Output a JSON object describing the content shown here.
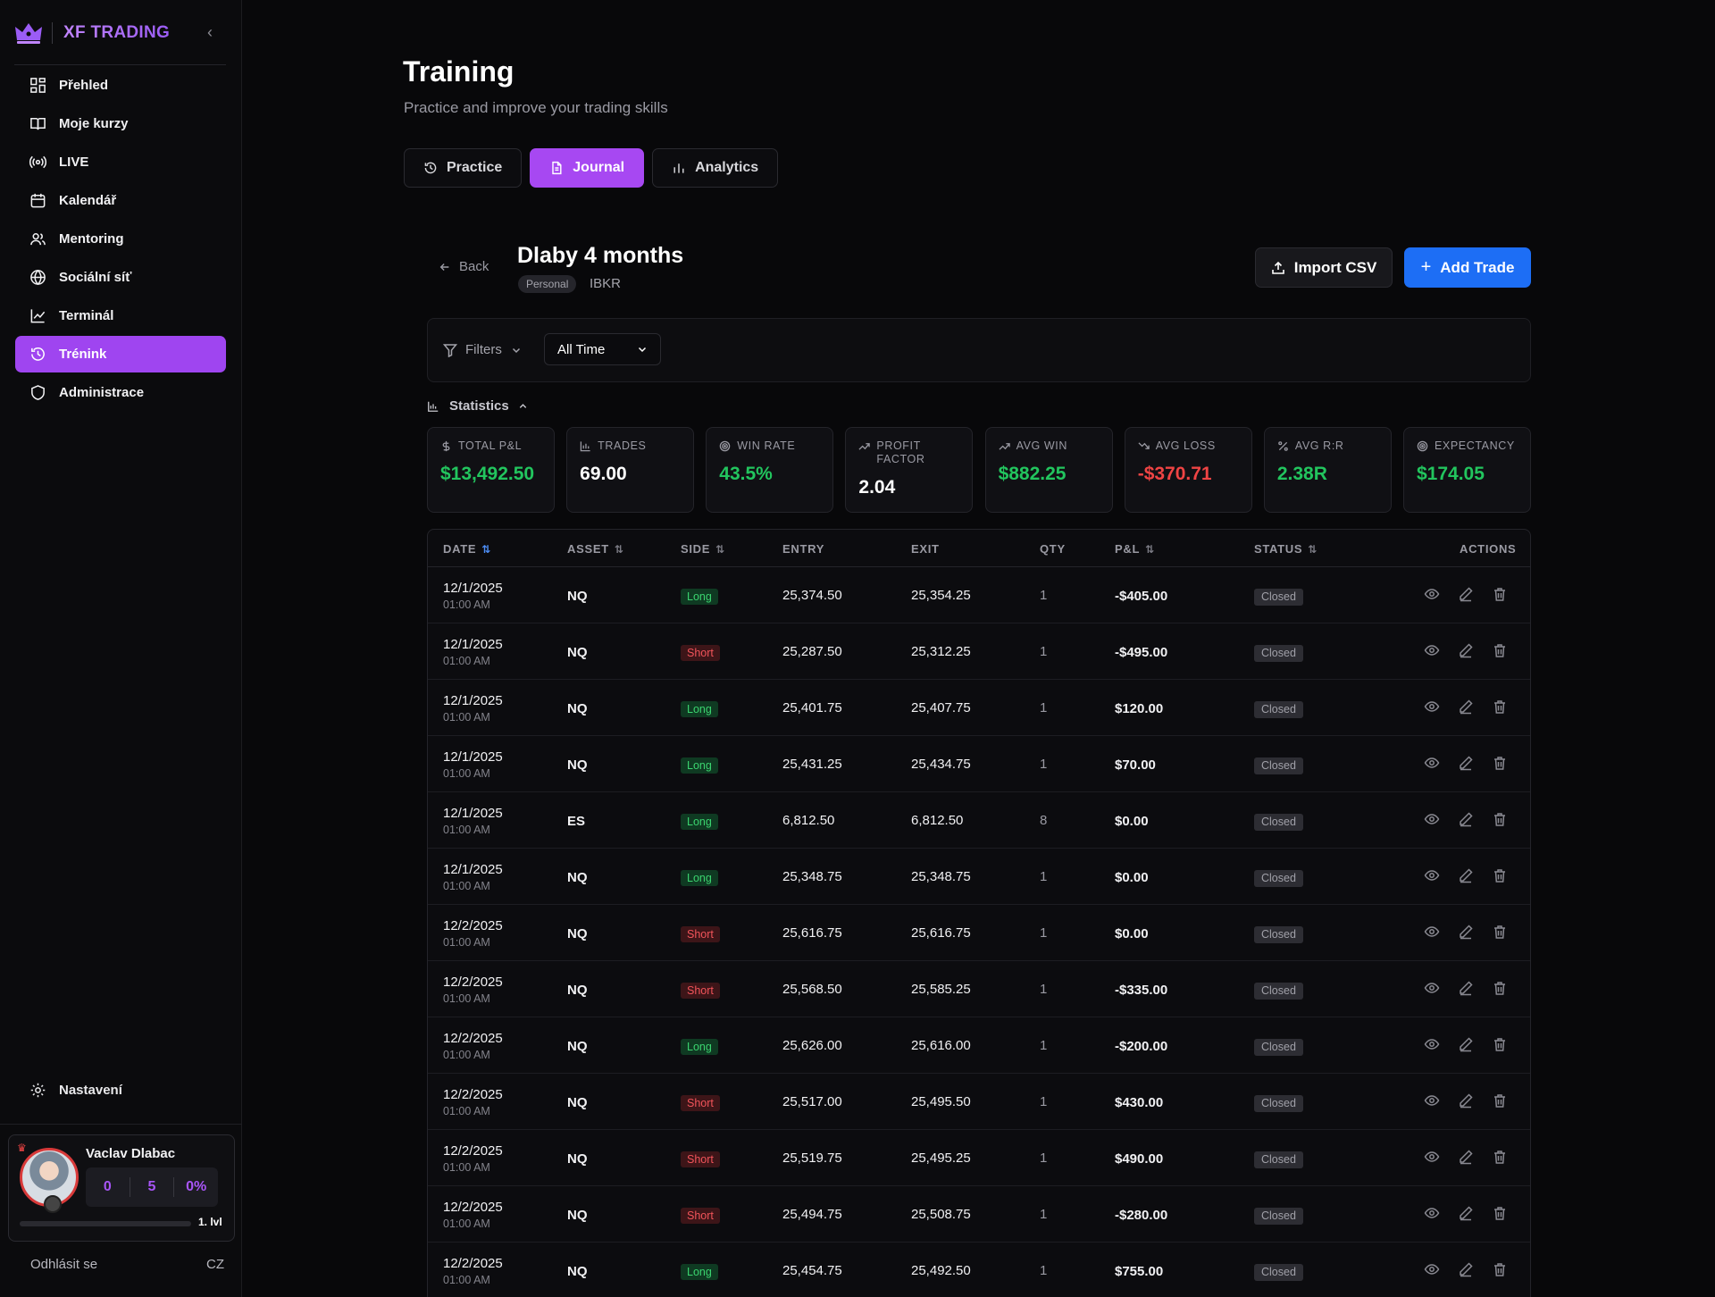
{
  "brand": {
    "name": "XF TRADING"
  },
  "sidebar": {
    "items": [
      {
        "label": "Přehled",
        "icon": "grid-icon"
      },
      {
        "label": "Moje kurzy",
        "icon": "book-icon"
      },
      {
        "label": "LIVE",
        "icon": "broadcast-icon"
      },
      {
        "label": "Kalendář",
        "icon": "calendar-icon"
      },
      {
        "label": "Mentoring",
        "icon": "users-icon"
      },
      {
        "label": "Sociální síť",
        "icon": "globe-icon"
      },
      {
        "label": "Terminál",
        "icon": "chart-line-icon"
      },
      {
        "label": "Trénink",
        "icon": "history-icon",
        "active": true
      },
      {
        "label": "Administrace",
        "icon": "shield-icon"
      }
    ],
    "settings": "Nastavení",
    "profile": {
      "name": "Vaclav Dlabac",
      "stat1": "0",
      "stat2": "5",
      "stat3": "0%",
      "level": "1. lvl",
      "progress": 0
    },
    "logout": "Odhlásit se",
    "lang": "CZ"
  },
  "page": {
    "title": "Training",
    "subtitle": "Practice and improve your trading skills"
  },
  "tabs": [
    {
      "label": "Practice",
      "icon": "history-icon"
    },
    {
      "label": "Journal",
      "icon": "document-icon",
      "active": true
    },
    {
      "label": "Analytics",
      "icon": "bar-chart-icon"
    }
  ],
  "journal": {
    "back": "Back",
    "title": "Dlaby 4 months",
    "chip": "Personal",
    "broker": "IBKR",
    "import": "Import CSV",
    "add": "Add Trade",
    "filters": "Filters",
    "period": "All Time",
    "stats_label": "Statistics"
  },
  "stats": [
    {
      "label": "TOTAL P&L",
      "value": "$13,492.50",
      "tone": "green",
      "icon": "dollar-icon"
    },
    {
      "label": "TRADES",
      "value": "69.00",
      "tone": "white",
      "icon": "bar-chart-icon"
    },
    {
      "label": "WIN RATE",
      "value": "43.5%",
      "tone": "green",
      "icon": "target-icon"
    },
    {
      "label": "PROFIT FACTOR",
      "value": "2.04",
      "tone": "white",
      "icon": "trend-up-icon"
    },
    {
      "label": "AVG WIN",
      "value": "$882.25",
      "tone": "green",
      "icon": "trend-up-icon"
    },
    {
      "label": "AVG LOSS",
      "value": "-$370.71",
      "tone": "red",
      "icon": "trend-down-icon"
    },
    {
      "label": "AVG R:R",
      "value": "2.38R",
      "tone": "green",
      "icon": "percent-icon"
    },
    {
      "label": "EXPECTANCY",
      "value": "$174.05",
      "tone": "green",
      "icon": "target-icon"
    }
  ],
  "table": {
    "headers": {
      "date": "DATE",
      "asset": "ASSET",
      "side": "SIDE",
      "entry": "ENTRY",
      "exit": "EXIT",
      "qty": "QTY",
      "pnl": "P&L",
      "status": "STATUS",
      "actions": "ACTIONS"
    },
    "rows": [
      {
        "date": "12/1/2025",
        "time": "01:00 AM",
        "asset": "NQ",
        "side": "Long",
        "entry": "25,374.50",
        "exit": "25,354.25",
        "qty": "1",
        "pnl": "-$405.00",
        "status": "Closed"
      },
      {
        "date": "12/1/2025",
        "time": "01:00 AM",
        "asset": "NQ",
        "side": "Short",
        "entry": "25,287.50",
        "exit": "25,312.25",
        "qty": "1",
        "pnl": "-$495.00",
        "status": "Closed"
      },
      {
        "date": "12/1/2025",
        "time": "01:00 AM",
        "asset": "NQ",
        "side": "Long",
        "entry": "25,401.75",
        "exit": "25,407.75",
        "qty": "1",
        "pnl": "$120.00",
        "status": "Closed"
      },
      {
        "date": "12/1/2025",
        "time": "01:00 AM",
        "asset": "NQ",
        "side": "Long",
        "entry": "25,431.25",
        "exit": "25,434.75",
        "qty": "1",
        "pnl": "$70.00",
        "status": "Closed"
      },
      {
        "date": "12/1/2025",
        "time": "01:00 AM",
        "asset": "ES",
        "side": "Long",
        "entry": "6,812.50",
        "exit": "6,812.50",
        "qty": "8",
        "pnl": "$0.00",
        "status": "Closed"
      },
      {
        "date": "12/1/2025",
        "time": "01:00 AM",
        "asset": "NQ",
        "side": "Long",
        "entry": "25,348.75",
        "exit": "25,348.75",
        "qty": "1",
        "pnl": "$0.00",
        "status": "Closed"
      },
      {
        "date": "12/2/2025",
        "time": "01:00 AM",
        "asset": "NQ",
        "side": "Short",
        "entry": "25,616.75",
        "exit": "25,616.75",
        "qty": "1",
        "pnl": "$0.00",
        "status": "Closed"
      },
      {
        "date": "12/2/2025",
        "time": "01:00 AM",
        "asset": "NQ",
        "side": "Short",
        "entry": "25,568.50",
        "exit": "25,585.25",
        "qty": "1",
        "pnl": "-$335.00",
        "status": "Closed"
      },
      {
        "date": "12/2/2025",
        "time": "01:00 AM",
        "asset": "NQ",
        "side": "Long",
        "entry": "25,626.00",
        "exit": "25,616.00",
        "qty": "1",
        "pnl": "-$200.00",
        "status": "Closed"
      },
      {
        "date": "12/2/2025",
        "time": "01:00 AM",
        "asset": "NQ",
        "side": "Short",
        "entry": "25,517.00",
        "exit": "25,495.50",
        "qty": "1",
        "pnl": "$430.00",
        "status": "Closed"
      },
      {
        "date": "12/2/2025",
        "time": "01:00 AM",
        "asset": "NQ",
        "side": "Short",
        "entry": "25,519.75",
        "exit": "25,495.25",
        "qty": "1",
        "pnl": "$490.00",
        "status": "Closed"
      },
      {
        "date": "12/2/2025",
        "time": "01:00 AM",
        "asset": "NQ",
        "side": "Short",
        "entry": "25,494.75",
        "exit": "25,508.75",
        "qty": "1",
        "pnl": "-$280.00",
        "status": "Closed"
      },
      {
        "date": "12/2/2025",
        "time": "01:00 AM",
        "asset": "NQ",
        "side": "Long",
        "entry": "25,454.75",
        "exit": "25,492.50",
        "qty": "1",
        "pnl": "$755.00",
        "status": "Closed"
      }
    ]
  },
  "colors": {
    "accent": "#a748f2",
    "primary": "#1d6ef5",
    "positive": "#22c55e",
    "negative": "#ef4444"
  }
}
